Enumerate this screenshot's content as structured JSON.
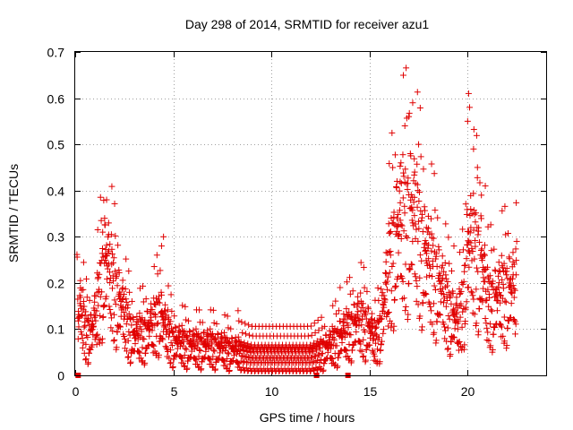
{
  "chart_data": {
    "type": "scatter",
    "title": "Day 298 of 2014, SRMTID for receiver azu1",
    "xlabel": "GPS time / hours",
    "ylabel": "SRMTID / TECUs",
    "xlim": [
      0,
      24
    ],
    "ylim": [
      0,
      0.7
    ],
    "grid": true,
    "marker": "+",
    "series_color": "#e00000",
    "xticks": [
      0,
      5,
      10,
      15,
      20
    ],
    "xtick_labels": [
      "0",
      "5",
      "10",
      "15",
      "20"
    ],
    "yticks": [
      0,
      0.1,
      0.2,
      0.3,
      0.4,
      0.5,
      0.6,
      0.7
    ],
    "ytick_labels": [
      "0",
      "0.1",
      "0.2",
      "0.3",
      "0.4",
      "0.5",
      "0.6",
      "0.7"
    ],
    "zero_markers": [
      0.15,
      12.3,
      13.9
    ],
    "profile": [
      [
        0.1,
        0.12
      ],
      [
        0.3,
        0.16
      ],
      [
        0.5,
        0.11
      ],
      [
        0.8,
        0.1
      ],
      [
        1.0,
        0.13
      ],
      [
        1.2,
        0.18
      ],
      [
        1.4,
        0.24
      ],
      [
        1.6,
        0.27
      ],
      [
        1.8,
        0.23
      ],
      [
        2.0,
        0.2
      ],
      [
        2.3,
        0.17
      ],
      [
        2.6,
        0.13
      ],
      [
        3.0,
        0.09
      ],
      [
        3.5,
        0.1
      ],
      [
        4.0,
        0.12
      ],
      [
        4.3,
        0.15
      ],
      [
        4.6,
        0.11
      ],
      [
        5.0,
        0.08
      ],
      [
        6.0,
        0.07
      ],
      [
        7.0,
        0.07
      ],
      [
        8.0,
        0.06
      ],
      [
        9.0,
        0.05
      ],
      [
        10.0,
        0.05
      ],
      [
        11.0,
        0.05
      ],
      [
        12.0,
        0.05
      ],
      [
        12.5,
        0.06
      ],
      [
        13.0,
        0.07
      ],
      [
        13.5,
        0.09
      ],
      [
        14.0,
        0.11
      ],
      [
        14.5,
        0.13
      ],
      [
        15.0,
        0.11
      ],
      [
        15.3,
        0.08
      ],
      [
        15.6,
        0.12
      ],
      [
        15.9,
        0.22
      ],
      [
        16.2,
        0.3
      ],
      [
        16.5,
        0.34
      ],
      [
        16.8,
        0.36
      ],
      [
        17.1,
        0.38
      ],
      [
        17.4,
        0.34
      ],
      [
        17.7,
        0.3
      ],
      [
        18.0,
        0.26
      ],
      [
        18.5,
        0.22
      ],
      [
        19.0,
        0.16
      ],
      [
        19.5,
        0.12
      ],
      [
        19.8,
        0.18
      ],
      [
        20.0,
        0.3
      ],
      [
        20.3,
        0.29
      ],
      [
        20.7,
        0.27
      ],
      [
        21.0,
        0.17
      ],
      [
        21.5,
        0.18
      ],
      [
        22.0,
        0.2
      ],
      [
        22.5,
        0.2
      ]
    ],
    "spikes": [
      [
        1.5,
        0.34
      ],
      [
        1.6,
        0.38
      ],
      [
        1.4,
        0.31
      ],
      [
        4.4,
        0.28
      ],
      [
        4.5,
        0.3
      ],
      [
        8.3,
        0.14
      ],
      [
        13.5,
        0.19
      ],
      [
        16.6,
        0.46
      ],
      [
        16.8,
        0.54
      ],
      [
        17.0,
        0.56
      ],
      [
        17.2,
        0.59
      ],
      [
        17.5,
        0.5
      ],
      [
        16.4,
        0.42
      ],
      [
        17.3,
        0.44
      ],
      [
        20.0,
        0.55
      ],
      [
        20.05,
        0.61
      ],
      [
        20.1,
        0.58
      ],
      [
        20.3,
        0.49
      ],
      [
        20.5,
        0.45
      ],
      [
        20.7,
        0.39
      ],
      [
        20.9,
        0.41
      ],
      [
        17.9,
        0.32
      ],
      [
        19.3,
        0.28
      ],
      [
        22.5,
        0.29
      ]
    ]
  }
}
